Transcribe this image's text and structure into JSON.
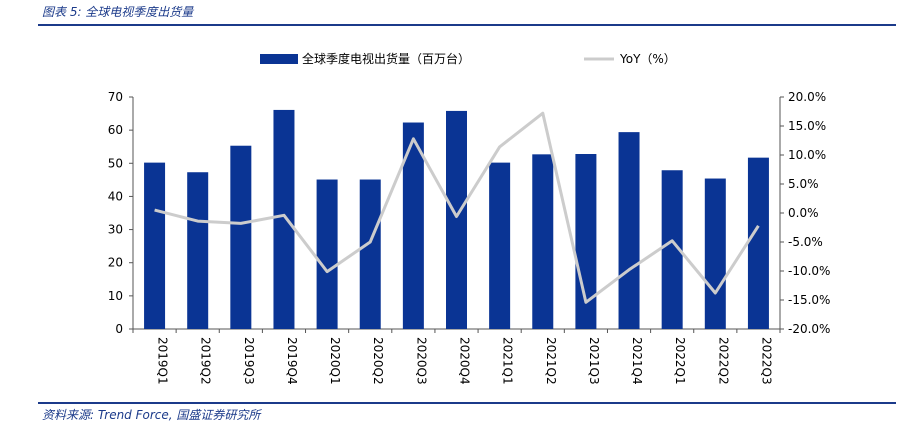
{
  "figure": {
    "title": "图表 5:  全球电视季度出货量",
    "source": "资料来源:  Trend Force,  国盛证券研究所"
  },
  "colors": {
    "bar": "#0a3494",
    "line": "#cccccc",
    "accent": "#1b3a8a"
  },
  "chart_data": {
    "type": "bar",
    "title": "",
    "xlabel": "",
    "ylabel": "",
    "categories": [
      "2019Q1",
      "2019Q2",
      "2019Q3",
      "2019Q4",
      "2020Q1",
      "2020Q2",
      "2020Q3",
      "2020Q4",
      "2021Q1",
      "2021Q2",
      "2021Q3",
      "2021Q4",
      "2022Q1",
      "2022Q2",
      "2022Q3"
    ],
    "series": [
      {
        "name": "全球季度电视出货量（百万台）",
        "type": "bar",
        "axis": "left",
        "values": [
          50.2,
          47.3,
          55.3,
          66.1,
          45.1,
          45.1,
          62.3,
          65.8,
          50.2,
          52.7,
          52.8,
          59.4,
          47.9,
          45.4,
          51.7
        ]
      },
      {
        "name": "YoY（%）",
        "type": "line",
        "axis": "right",
        "values": [
          0.5,
          -1.4,
          -1.8,
          -0.4,
          -10.1,
          -5.0,
          12.8,
          -0.6,
          11.4,
          17.2,
          -15.4,
          -9.8,
          -4.8,
          -13.8,
          -2.2
        ]
      }
    ],
    "y_left": {
      "lim": [
        0,
        70
      ],
      "ticks": [
        0,
        10,
        20,
        30,
        40,
        50,
        60,
        70
      ],
      "tick_labels": [
        "0",
        "10",
        "20",
        "30",
        "40",
        "50",
        "60",
        "70"
      ]
    },
    "y_right": {
      "lim": [
        -20,
        20
      ],
      "ticks": [
        -20,
        -15,
        -10,
        -5,
        0,
        5,
        10,
        15,
        20
      ],
      "tick_labels": [
        "-20.0%",
        "-15.0%",
        "-10.0%",
        "-5.0%",
        "0.0%",
        "5.0%",
        "10.0%",
        "15.0%",
        "20.0%"
      ]
    },
    "grid": false,
    "legend": {
      "position": "top",
      "items": [
        "全球季度电视出货量（百万台）",
        "YoY（%）"
      ]
    }
  }
}
